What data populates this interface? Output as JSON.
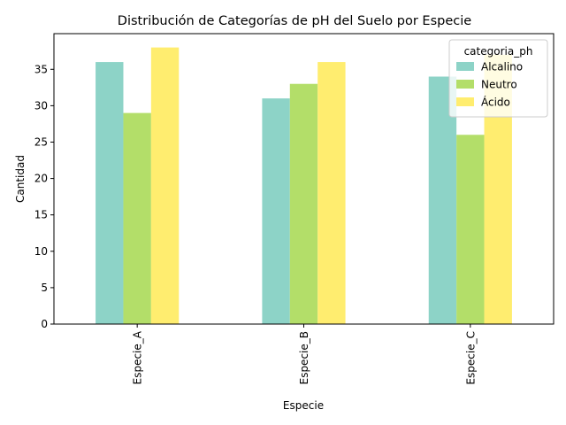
{
  "chart_data": {
    "type": "bar",
    "title": "Distribución de Categorías de pH del Suelo por Especie",
    "xlabel": "Especie",
    "ylabel": "Cantidad",
    "categories": [
      "Especie_A",
      "Especie_B",
      "Especie_C"
    ],
    "series": [
      {
        "name": "Alcalino",
        "values": [
          36,
          31,
          34
        ],
        "color": "#8dd3c7"
      },
      {
        "name": "Neutro",
        "values": [
          29,
          33,
          26
        ],
        "color": "#b3de69"
      },
      {
        "name": "Ácido",
        "values": [
          38,
          36,
          37
        ],
        "color": "#ffed6f"
      }
    ],
    "ylim": [
      0,
      39.9
    ],
    "yticks": [
      0,
      5,
      10,
      15,
      20,
      25,
      30,
      35
    ],
    "grid": false,
    "legend": {
      "title": "categoria_ph",
      "placement": "top-right"
    }
  }
}
